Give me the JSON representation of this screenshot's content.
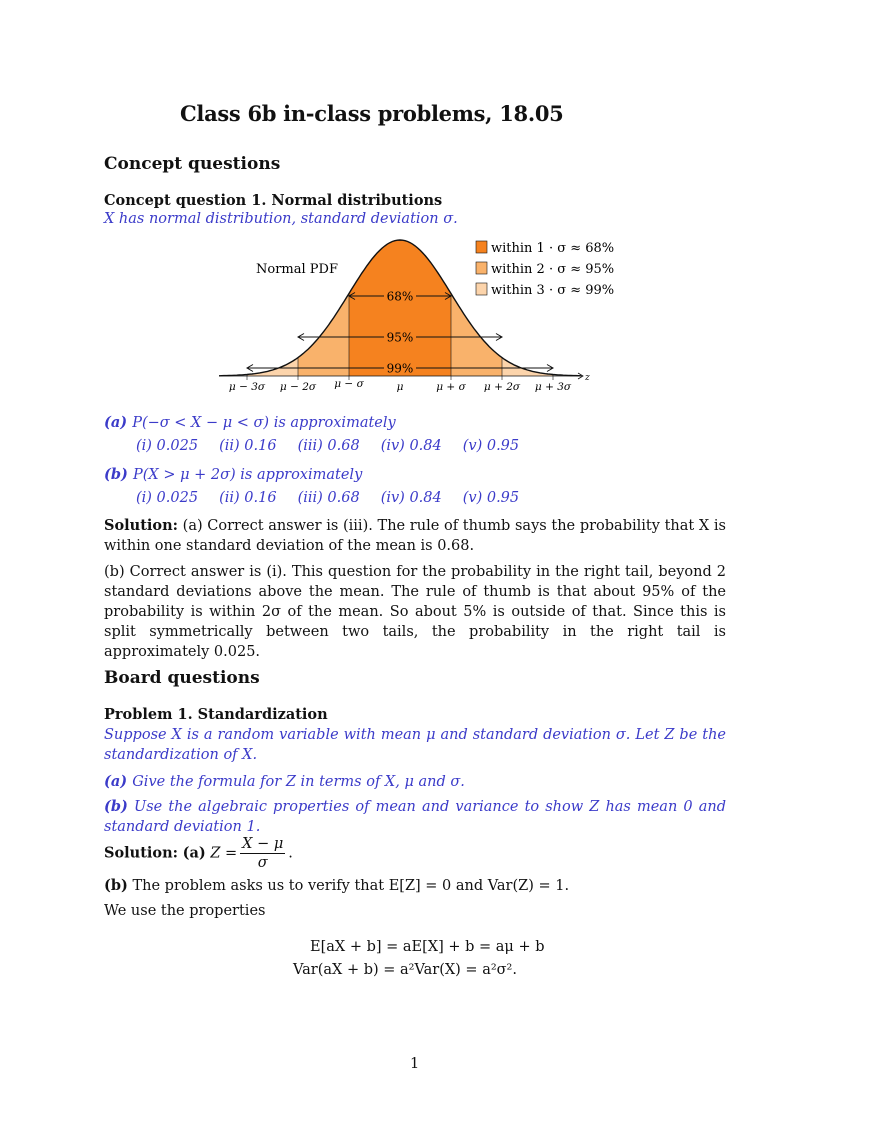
{
  "title": "Class 6b in-class problems, 18.05",
  "concept": {
    "heading": "Concept questions",
    "q1_heading": "Concept question 1. Normal distributions",
    "q1_stem": "X has normal distribution, standard deviation σ.",
    "figure": {
      "pdf_label": "Normal PDF",
      "legend": [
        "within 1 · σ ≈ 68%",
        "within 2 · σ ≈ 95%",
        "within 3 · σ ≈ 99%"
      ],
      "legend_colors": [
        "#f5821f",
        "#f9b26b",
        "#fcd4ab"
      ],
      "interval_labels": [
        "68%",
        "95%",
        "99%"
      ],
      "ticks": [
        "μ − 3σ",
        "μ − 2σ",
        "μ − σ",
        "μ",
        "μ + σ",
        "μ + 2σ",
        "μ + 3σ"
      ],
      "axis_label": "z"
    },
    "part_a_label": "(a)",
    "part_a_text": "P(−σ < X − μ < σ) is approximately",
    "part_a_options": [
      "(i) 0.025",
      "(ii) 0.16",
      "(iii) 0.68",
      "(iv) 0.84",
      "(v) 0.95"
    ],
    "part_b_label": "(b)",
    "part_b_text": "P(X > μ + 2σ) is approximately",
    "part_b_options": [
      "(i) 0.025",
      "(ii) 0.16",
      "(iii) 0.68",
      "(iv) 0.84",
      "(v) 0.95"
    ],
    "solution_label": "Solution:",
    "solution_a": "(a) Correct answer is (iii). The rule of thumb says the probability that X is within one standard deviation of the mean is 0.68.",
    "solution_b": "(b) Correct answer is (i). This question for the probability in the right tail, beyond 2 standard deviations above the mean. The rule of thumb is that about 95% of the probability is within 2σ of the mean. So about 5% is outside of that. Since this is split symmetrically between two tails, the probability in the right tail is approximately 0.025."
  },
  "board": {
    "heading": "Board questions",
    "p1_heading": "Problem 1. Standardization",
    "p1_stem": "Suppose X is a random variable with mean μ and standard deviation σ. Let Z be the standardization of X.",
    "part_a_label": "(a)",
    "part_a_text": "Give the formula for Z in terms of X, μ and σ.",
    "part_b_label": "(b)",
    "part_b_text": "Use the algebraic properties of mean and variance to show Z has mean 0 and standard deviation 1.",
    "solution_label": "Solution:",
    "solution_a_label": "(a)",
    "solution_a_lhs": "Z =",
    "solution_a_num": "X − μ",
    "solution_a_den": "σ",
    "solution_a_end": ".",
    "solution_b_label": "(b)",
    "solution_b_text": "The problem asks us to verify that E[Z] = 0 and Var(Z) = 1.",
    "properties_intro": "We use the properties",
    "eq1": "E[aX + b] = aE[X] + b = aμ + b",
    "eq2": "Var(aX + b) = a²Var(X) = a²σ²."
  },
  "page_number": "1"
}
